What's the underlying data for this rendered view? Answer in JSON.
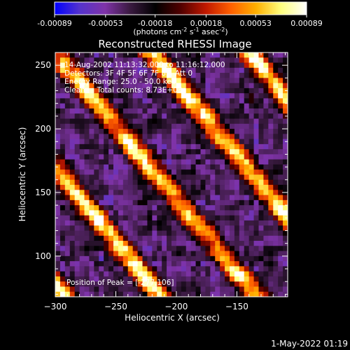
{
  "chart_data": {
    "type": "heatmap",
    "title": "Reconstructed RHESSI Image",
    "xlabel": "Heliocentric X (arcsec)",
    "ylabel": "Heliocentric Y (arcsec)",
    "xlim": [
      -300,
      -108
    ],
    "ylim": [
      68,
      260
    ],
    "x_ticks": [
      -300,
      -250,
      -200,
      -150
    ],
    "y_ticks": [
      100,
      150,
      200,
      250
    ],
    "colorbar": {
      "range": [
        -0.00089,
        0.00089
      ],
      "ticks": [
        "-0.00089",
        "-0.00053",
        "-0.00018",
        "0.00018",
        "0.00053",
        "0.00089"
      ],
      "label": "(photons cm",
      "label_exp1": "-2",
      "label_mid": " s",
      "label_exp2": "-1",
      "label_mid2": " asec",
      "label_exp3": "-2",
      "label_end": ")",
      "colormap": [
        "#0000ff",
        "#5533cc",
        "#7f33a8",
        "#3a1a40",
        "#000000",
        "#500000",
        "#c01800",
        "#ff6000",
        "#ffb000",
        "#ffff80",
        "#ffffff"
      ]
    },
    "annotations": [
      "14-Aug-2002 11:13:32.000 to 11:16:12.000",
      "Detectors: 3F 4F 5F 6F 7F 8F, Att 0",
      "Energy Range: 25.0 - 50.0 keV",
      "Clean     Total counts: 8.73E+03"
    ],
    "peak_label": "Position of Peak = [-277,106]",
    "peak": [
      -277,
      106
    ],
    "grid": false
  },
  "footer": {
    "date": "1-May-2022 01:19"
  }
}
